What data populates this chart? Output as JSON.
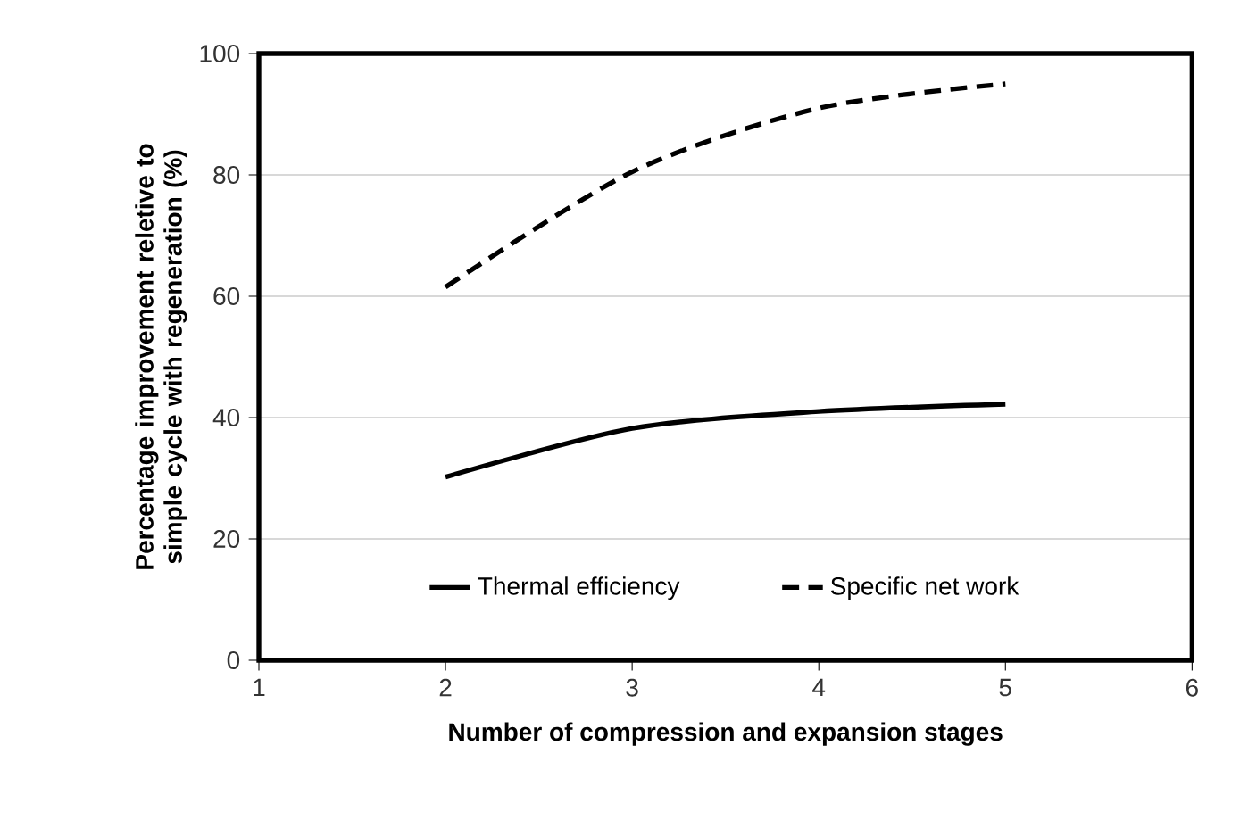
{
  "chart_data": {
    "type": "line",
    "xlabel": "Number of compression and expansion stages",
    "ylabel": "Percentage improvement reletive to simple cycle with regeneration (%)",
    "x": [
      2,
      3,
      4,
      5
    ],
    "series": [
      {
        "name": "Thermal efficiency",
        "color": "#000000",
        "line_style": "solid",
        "values": [
          30.2,
          38.2,
          41,
          42.2
        ]
      },
      {
        "name": "Specific net work",
        "color": "#000000",
        "line_style": "dashed",
        "values": [
          61.5,
          80.5,
          91,
          95
        ]
      }
    ],
    "xlim": [
      1,
      6
    ],
    "xticks": [
      1,
      2,
      3,
      4,
      5,
      6
    ],
    "ylim": [
      0,
      100
    ],
    "yticks": [
      0,
      20,
      40,
      60,
      80,
      100
    ],
    "grid": "y",
    "legend": "bottom",
    "marker": "none"
  }
}
